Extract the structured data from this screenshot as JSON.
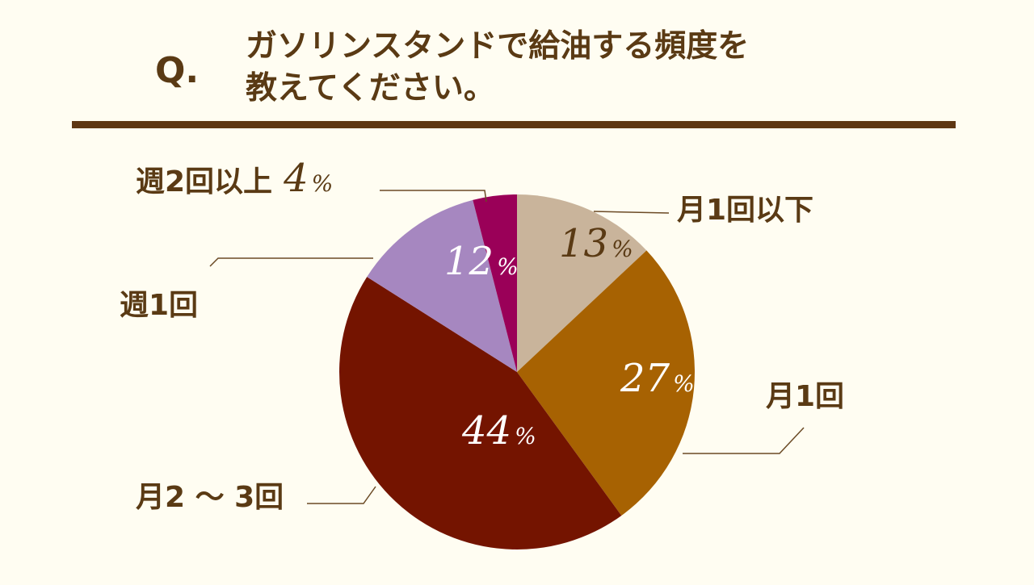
{
  "question": {
    "mark": "Q.",
    "line1": "ガソリンスタンドで給油する頻度を",
    "line2": "教えてください。"
  },
  "colors": {
    "background": "#fffdf2",
    "text": "#5a3a14",
    "rule": "#5e3714"
  },
  "chart_data": {
    "type": "pie",
    "title": "ガソリンスタンドで給油する頻度を教えてください。",
    "unit": "%",
    "slices": [
      {
        "label": "月1回以下",
        "value": 13,
        "color": "#c9b49b",
        "pct_color": "#5a3a14"
      },
      {
        "label": "月1回",
        "value": 27,
        "color": "#a76202",
        "pct_color": "#ffffff"
      },
      {
        "label": "月2 ～ 3回",
        "value": 44,
        "color": "#741400",
        "pct_color": "#ffffff"
      },
      {
        "label": "週1回",
        "value": 12,
        "color": "#a687c0",
        "pct_color": "#ffffff"
      },
      {
        "label": "週2回以上",
        "value": 4,
        "color": "#9a0058",
        "pct_color": "#5a3a14"
      }
    ]
  }
}
